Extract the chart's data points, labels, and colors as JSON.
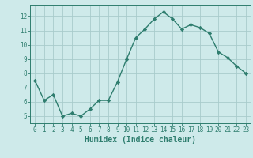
{
  "x": [
    0,
    1,
    2,
    3,
    4,
    5,
    6,
    7,
    8,
    9,
    10,
    11,
    12,
    13,
    14,
    15,
    16,
    17,
    18,
    19,
    20,
    21,
    22,
    23
  ],
  "y": [
    7.5,
    6.1,
    6.5,
    5.0,
    5.2,
    5.0,
    5.5,
    6.1,
    6.1,
    7.4,
    9.0,
    10.5,
    11.1,
    11.8,
    12.3,
    11.8,
    11.1,
    11.4,
    11.2,
    10.8,
    9.5,
    9.1,
    8.5,
    8.0
  ],
  "line_color": "#2e7d6e",
  "marker": "D",
  "marker_size": 2.2,
  "linewidth": 1.0,
  "xlabel": "Humidex (Indice chaleur)",
  "xlim": [
    -0.5,
    23.5
  ],
  "ylim": [
    4.5,
    12.8
  ],
  "yticks": [
    5,
    6,
    7,
    8,
    9,
    10,
    11,
    12
  ],
  "xticks": [
    0,
    1,
    2,
    3,
    4,
    5,
    6,
    7,
    8,
    9,
    10,
    11,
    12,
    13,
    14,
    15,
    16,
    17,
    18,
    19,
    20,
    21,
    22,
    23
  ],
  "xtick_labels": [
    "0",
    "1",
    "2",
    "3",
    "4",
    "5",
    "6",
    "7",
    "8",
    "9",
    "10",
    "11",
    "12",
    "13",
    "14",
    "15",
    "16",
    "17",
    "18",
    "19",
    "20",
    "21",
    "22",
    "23"
  ],
  "background_color": "#ceeaea",
  "grid_color": "#a8cccc",
  "tick_label_fontsize": 5.5,
  "xlabel_fontsize": 7.0,
  "xlabel_fontweight": "bold"
}
